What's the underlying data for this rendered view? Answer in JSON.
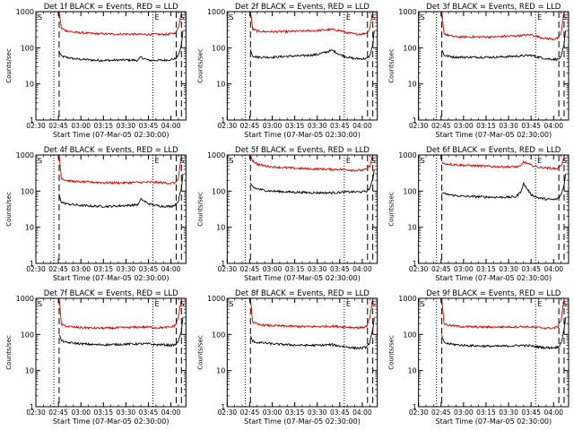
{
  "figure": {
    "colors": {
      "events": "#000000",
      "lld": "#d00000",
      "axes": "#000000",
      "background": "#ffffff"
    }
  },
  "chart_data": [
    {
      "type": "line",
      "title": "Det 1f BLACK = Events, RED = LLD",
      "xlabel": "Start Time (07-Mar-05 02:30:00)",
      "ylabel": "Counts/sec",
      "xticks": [
        "02:30",
        "02:45",
        "03:00",
        "03:15",
        "03:30",
        "03:45",
        "04:00"
      ],
      "xlim_minutes": [
        0,
        100
      ],
      "ylim": [
        1,
        1000
      ],
      "yscale": "log",
      "ytick_labels": [
        "1",
        "10",
        "100",
        "1000"
      ],
      "markers": {
        "s_label": "S",
        "e_label": "E",
        "dotted": [
          12.0,
          78.0
        ],
        "dashed": [
          15.5,
          93.5,
          97.0
        ]
      },
      "series": [
        {
          "name": "Events",
          "color": "black",
          "x": [
            15.5,
            17,
            20,
            25,
            30,
            40,
            50,
            60,
            68,
            70,
            75,
            80,
            85,
            90,
            93,
            95,
            97,
            98
          ],
          "values": [
            80,
            58,
            55,
            50,
            48,
            45,
            45,
            46,
            45,
            55,
            45,
            45,
            45,
            47,
            50,
            62,
            120,
            300
          ]
        },
        {
          "name": "LLD",
          "color": "red",
          "x": [
            15.5,
            17,
            20,
            25,
            30,
            40,
            50,
            60,
            70,
            80,
            85,
            90,
            93,
            95,
            97,
            98
          ],
          "values": [
            1000,
            350,
            300,
            270,
            260,
            245,
            240,
            240,
            235,
            235,
            235,
            240,
            260,
            350,
            1000,
            1000
          ]
        }
      ]
    },
    {
      "type": "line",
      "title": "Det 2f BLACK = Events, RED = LLD",
      "xlabel": "Start Time (07-Mar-05 02:30:00)",
      "ylabel": "Counts/sec",
      "xticks": [
        "02:30",
        "02:45",
        "03:00",
        "03:15",
        "03:30",
        "03:45",
        "04:00"
      ],
      "xlim_minutes": [
        0,
        100
      ],
      "ylim": [
        1,
        1000
      ],
      "yscale": "log",
      "ytick_labels": [
        "1",
        "10",
        "100",
        "1000"
      ],
      "markers": {
        "s_label": "S",
        "e_label": "E",
        "dotted": [
          12.0,
          78.0
        ],
        "dashed": [
          15.5,
          93.5,
          97.0
        ]
      },
      "series": [
        {
          "name": "Events",
          "color": "black",
          "x": [
            15.5,
            17,
            20,
            25,
            30,
            40,
            50,
            60,
            70,
            75,
            80,
            85,
            90,
            93,
            95,
            97,
            98
          ],
          "values": [
            90,
            60,
            55,
            55,
            55,
            58,
            60,
            65,
            85,
            65,
            55,
            50,
            50,
            50,
            60,
            120,
            300
          ]
        },
        {
          "name": "LLD",
          "color": "red",
          "x": [
            15.5,
            17,
            20,
            25,
            30,
            40,
            50,
            60,
            70,
            75,
            80,
            85,
            90,
            93,
            95,
            97,
            98
          ],
          "values": [
            1000,
            330,
            290,
            280,
            280,
            280,
            290,
            300,
            320,
            300,
            260,
            240,
            240,
            260,
            350,
            1000,
            1000
          ]
        }
      ]
    },
    {
      "type": "line",
      "title": "Det 3f BLACK = Events, RED = LLD",
      "xlabel": "Start Time (07-Mar-05 02:30:00)",
      "ylabel": "Counts/sec",
      "xticks": [
        "02:30",
        "02:45",
        "03:00",
        "03:15",
        "03:30",
        "03:45",
        "04:00"
      ],
      "xlim_minutes": [
        0,
        100
      ],
      "ylim": [
        1,
        1000
      ],
      "yscale": "log",
      "ytick_labels": [
        "1",
        "10",
        "100",
        "1000"
      ],
      "markers": {
        "s_label": "S",
        "e_label": "E",
        "dotted": [
          12.0,
          78.0
        ],
        "dashed": [
          15.5,
          93.5,
          97.0
        ]
      },
      "series": [
        {
          "name": "Events",
          "color": "black",
          "x": [
            15.5,
            17,
            20,
            25,
            30,
            40,
            50,
            60,
            70,
            75,
            80,
            85,
            90,
            93,
            95,
            97,
            98
          ],
          "values": [
            90,
            62,
            58,
            55,
            55,
            55,
            55,
            57,
            60,
            62,
            55,
            50,
            48,
            48,
            55,
            120,
            300
          ]
        },
        {
          "name": "LLD",
          "color": "red",
          "x": [
            15.5,
            17,
            20,
            25,
            30,
            40,
            50,
            60,
            70,
            75,
            80,
            85,
            90,
            93,
            95,
            97,
            98
          ],
          "values": [
            1000,
            250,
            220,
            200,
            200,
            200,
            200,
            210,
            220,
            230,
            200,
            180,
            175,
            185,
            250,
            1000,
            1000
          ]
        }
      ]
    },
    {
      "type": "line",
      "title": "Det 4f BLACK = Events, RED = LLD",
      "xlabel": "Start Time (07-Mar-05 02:30:00)",
      "ylabel": "Counts/sec",
      "xticks": [
        "02:30",
        "02:45",
        "03:00",
        "03:15",
        "03:30",
        "03:45",
        "04:00"
      ],
      "xlim_minutes": [
        0,
        100
      ],
      "ylim": [
        1,
        1000
      ],
      "yscale": "log",
      "ytick_labels": [
        "1",
        "10",
        "100",
        "1000"
      ],
      "markers": {
        "s_label": "S",
        "e_label": "E",
        "dotted": [
          12.0,
          78.0
        ],
        "dashed": [
          15.5,
          93.5,
          97.0
        ]
      },
      "series": [
        {
          "name": "Events",
          "color": "black",
          "x": [
            15.5,
            17,
            20,
            25,
            30,
            40,
            50,
            60,
            68,
            70,
            75,
            80,
            85,
            90,
            93,
            95,
            97,
            98
          ],
          "values": [
            80,
            50,
            45,
            42,
            40,
            38,
            38,
            40,
            42,
            60,
            45,
            40,
            38,
            38,
            42,
            55,
            120,
            300
          ]
        },
        {
          "name": "LLD",
          "color": "red",
          "x": [
            15.5,
            17,
            20,
            25,
            30,
            40,
            50,
            60,
            70,
            80,
            85,
            90,
            93,
            95,
            97,
            98
          ],
          "values": [
            1000,
            230,
            200,
            185,
            180,
            175,
            170,
            170,
            175,
            175,
            170,
            165,
            170,
            230,
            1000,
            1000
          ]
        }
      ]
    },
    {
      "type": "line",
      "title": "Det 5f BLACK = Events, RED = LLD",
      "xlabel": "Start Time (07-Mar-05 02:30:00)",
      "ylabel": "Counts/sec",
      "xticks": [
        "02:30",
        "02:45",
        "03:00",
        "03:15",
        "03:30",
        "03:45",
        "04:00"
      ],
      "xlim_minutes": [
        0,
        100
      ],
      "ylim": [
        1,
        1000
      ],
      "yscale": "log",
      "ytick_labels": [
        "1",
        "10",
        "100",
        "1000"
      ],
      "markers": {
        "s_label": "S",
        "e_label": "E",
        "dotted": [
          12.0,
          78.0
        ],
        "dashed": [
          15.5,
          93.5,
          97.0
        ]
      },
      "series": [
        {
          "name": "Events",
          "color": "black",
          "x": [
            15.5,
            17,
            20,
            25,
            30,
            40,
            50,
            60,
            70,
            75,
            80,
            85,
            90,
            93,
            95,
            97,
            98
          ],
          "values": [
            160,
            130,
            115,
            105,
            100,
            95,
            92,
            90,
            90,
            92,
            95,
            95,
            95,
            100,
            120,
            200,
            400
          ]
        },
        {
          "name": "LLD",
          "color": "red",
          "x": [
            15.5,
            17,
            20,
            25,
            30,
            40,
            50,
            60,
            70,
            75,
            80,
            85,
            90,
            93,
            95,
            97,
            98
          ],
          "values": [
            1000,
            700,
            560,
            500,
            470,
            440,
            420,
            410,
            400,
            400,
            390,
            380,
            380,
            400,
            500,
            1000,
            1000
          ]
        }
      ]
    },
    {
      "type": "line",
      "title": "Det 6f BLACK = Events, RED = LLD",
      "xlabel": "Start Time (07-Mar-05 02:30:00)",
      "ylabel": "Counts/sec",
      "xticks": [
        "02:30",
        "02:45",
        "03:00",
        "03:15",
        "03:30",
        "03:45",
        "04:00"
      ],
      "xlim_minutes": [
        0,
        100
      ],
      "ylim": [
        1,
        1000
      ],
      "yscale": "log",
      "ytick_labels": [
        "1",
        "10",
        "100",
        "1000"
      ],
      "markers": {
        "s_label": "S",
        "e_label": "E",
        "dotted": [
          12.0,
          78.0
        ],
        "dashed": [
          15.5,
          93.5,
          97.0
        ]
      },
      "series": [
        {
          "name": "Events",
          "color": "black",
          "x": [
            15.5,
            17,
            20,
            25,
            30,
            40,
            50,
            60,
            65,
            68,
            70,
            75,
            80,
            85,
            90,
            93,
            95,
            97,
            98
          ],
          "values": [
            90,
            85,
            80,
            75,
            72,
            70,
            68,
            68,
            70,
            95,
            160,
            80,
            65,
            60,
            58,
            62,
            80,
            150,
            300
          ]
        },
        {
          "name": "LLD",
          "color": "red",
          "x": [
            15.5,
            17,
            20,
            25,
            30,
            40,
            50,
            60,
            65,
            68,
            70,
            75,
            80,
            85,
            90,
            93,
            95,
            97,
            98
          ],
          "values": [
            600,
            580,
            560,
            540,
            520,
            500,
            480,
            470,
            470,
            480,
            650,
            520,
            460,
            440,
            420,
            430,
            500,
            900,
            1000
          ]
        }
      ]
    },
    {
      "type": "line",
      "title": "Det 7f BLACK = Events, RED = LLD",
      "xlabel": "Start Time (07-Mar-05 02:30:00)",
      "ylabel": "Counts/sec",
      "xticks": [
        "02:30",
        "02:45",
        "03:00",
        "03:15",
        "03:30",
        "03:45",
        "04:00"
      ],
      "xlim_minutes": [
        0,
        100
      ],
      "ylim": [
        1,
        1000
      ],
      "yscale": "log",
      "ytick_labels": [
        "1",
        "10",
        "100",
        "1000"
      ],
      "markers": {
        "s_label": "S",
        "e_label": "E",
        "dotted": [
          12.0,
          78.0
        ],
        "dashed": [
          15.5,
          93.5,
          97.0
        ]
      },
      "series": [
        {
          "name": "Events",
          "color": "black",
          "x": [
            15.5,
            17,
            20,
            25,
            30,
            40,
            50,
            60,
            70,
            75,
            80,
            85,
            90,
            93,
            95,
            97,
            98
          ],
          "values": [
            100,
            68,
            60,
            58,
            55,
            52,
            52,
            54,
            55,
            55,
            52,
            52,
            50,
            52,
            65,
            130,
            300
          ]
        },
        {
          "name": "LLD",
          "color": "red",
          "x": [
            15.5,
            17,
            20,
            25,
            30,
            40,
            50,
            60,
            70,
            75,
            80,
            85,
            90,
            93,
            95,
            97,
            98
          ],
          "values": [
            1000,
            190,
            170,
            160,
            155,
            150,
            150,
            155,
            160,
            160,
            155,
            155,
            160,
            180,
            300,
            1000,
            1000
          ]
        }
      ]
    },
    {
      "type": "line",
      "title": "Det 8f BLACK = Events, RED = LLD",
      "xlabel": "Start Time (07-Mar-05 02:30:00)",
      "ylabel": "Counts/sec",
      "xticks": [
        "02:30",
        "02:45",
        "03:00",
        "03:15",
        "03:30",
        "03:45",
        "04:00"
      ],
      "xlim_minutes": [
        0,
        100
      ],
      "ylim": [
        1,
        1000
      ],
      "yscale": "log",
      "ytick_labels": [
        "1",
        "10",
        "100",
        "1000"
      ],
      "markers": {
        "s_label": "S",
        "e_label": "E",
        "dotted": [
          12.0,
          78.0
        ],
        "dashed": [
          15.5,
          93.5,
          97.0
        ]
      },
      "series": [
        {
          "name": "Events",
          "color": "black",
          "x": [
            15.5,
            17,
            20,
            25,
            30,
            40,
            50,
            60,
            70,
            75,
            80,
            85,
            90,
            93,
            95,
            97,
            98
          ],
          "values": [
            90,
            65,
            60,
            58,
            55,
            52,
            50,
            50,
            52,
            48,
            45,
            42,
            42,
            45,
            60,
            130,
            300
          ]
        },
        {
          "name": "LLD",
          "color": "red",
          "x": [
            15.5,
            17,
            20,
            25,
            30,
            40,
            50,
            60,
            70,
            75,
            80,
            85,
            90,
            93,
            95,
            97,
            98
          ],
          "values": [
            1000,
            220,
            190,
            180,
            175,
            170,
            165,
            165,
            170,
            165,
            160,
            155,
            155,
            170,
            280,
            1000,
            1000
          ]
        }
      ]
    },
    {
      "type": "line",
      "title": "Det 9f BLACK = Events, RED = LLD",
      "xlabel": "Start Time (07-Mar-05 02:30:00)",
      "ylabel": "Counts/sec",
      "xticks": [
        "02:30",
        "02:45",
        "03:00",
        "03:15",
        "03:30",
        "03:45",
        "04:00"
      ],
      "xlim_minutes": [
        0,
        100
      ],
      "ylim": [
        1,
        1000
      ],
      "yscale": "log",
      "ytick_labels": [
        "1",
        "10",
        "100",
        "1000"
      ],
      "markers": {
        "s_label": "S",
        "e_label": "E",
        "dotted": [
          12.0,
          78.0
        ],
        "dashed": [
          15.5,
          93.5,
          97.0
        ]
      },
      "series": [
        {
          "name": "Events",
          "color": "black",
          "x": [
            15.5,
            17,
            20,
            25,
            30,
            40,
            50,
            60,
            70,
            75,
            80,
            85,
            90,
            93,
            95,
            97,
            98
          ],
          "values": [
            90,
            60,
            55,
            52,
            50,
            48,
            47,
            48,
            50,
            48,
            45,
            43,
            43,
            45,
            60,
            130,
            300
          ]
        },
        {
          "name": "LLD",
          "color": "red",
          "x": [
            15.5,
            17,
            20,
            25,
            30,
            40,
            50,
            60,
            70,
            75,
            80,
            85,
            90,
            93,
            95,
            97,
            98
          ],
          "values": [
            1000,
            200,
            180,
            170,
            165,
            160,
            160,
            162,
            165,
            160,
            155,
            150,
            150,
            165,
            260,
            1000,
            1000
          ]
        }
      ]
    }
  ]
}
